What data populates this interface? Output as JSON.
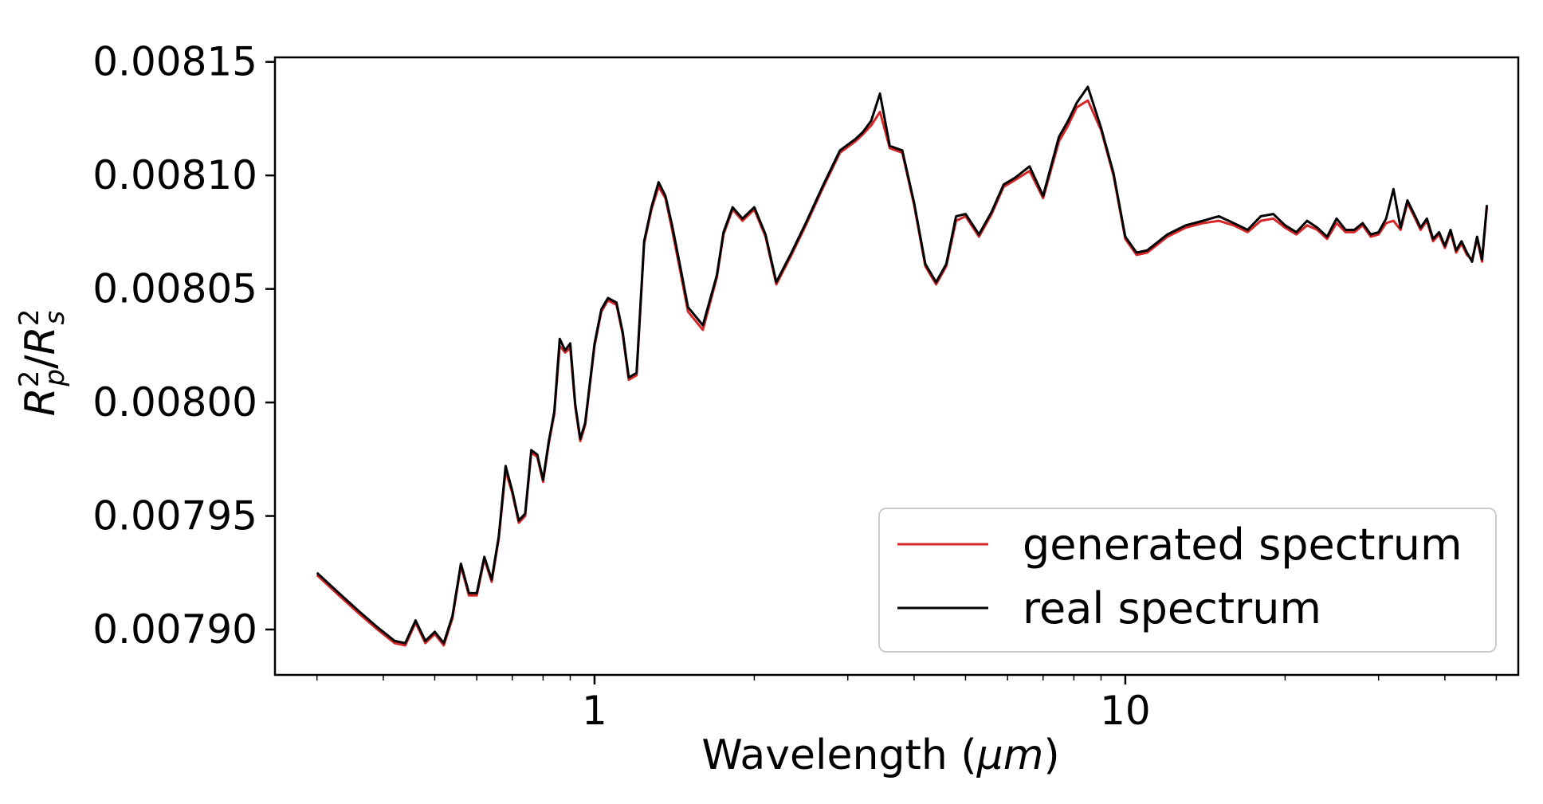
{
  "chart_data": {
    "type": "line",
    "title": "",
    "xlabel": "Wavelength (μm)",
    "xlabel_parts": {
      "prefix": "Wavelength (",
      "var": "μm",
      "suffix": ")"
    },
    "ylabel": "R_p^2/R_s^2",
    "ylabel_parts": {
      "r1": "R",
      "sup1": "2",
      "sub1": "p",
      "slash": "/",
      "r2": "R",
      "sup2": "2",
      "sub2": "s"
    },
    "xscale": "log",
    "xlim": [
      0.25,
      55
    ],
    "ylim": [
      0.00788,
      0.008152
    ],
    "xticks": [
      {
        "value": 1,
        "label": "1"
      },
      {
        "value": 10,
        "label": "10"
      }
    ],
    "yticks": [
      {
        "value": 0.0079,
        "label": "0.00790"
      },
      {
        "value": 0.00795,
        "label": "0.00795"
      },
      {
        "value": 0.008,
        "label": "0.00800"
      },
      {
        "value": 0.00805,
        "label": "0.00805"
      },
      {
        "value": 0.0081,
        "label": "0.00810"
      },
      {
        "value": 0.00815,
        "label": "0.00815"
      }
    ],
    "grid": false,
    "legend_position": "lower-right",
    "series": [
      {
        "name": "generated spectrum",
        "color": "#d62728",
        "x": [
          0.3,
          0.33,
          0.36,
          0.39,
          0.42,
          0.44,
          0.46,
          0.48,
          0.5,
          0.52,
          0.54,
          0.56,
          0.58,
          0.6,
          0.62,
          0.64,
          0.66,
          0.68,
          0.7,
          0.72,
          0.74,
          0.76,
          0.78,
          0.8,
          0.82,
          0.84,
          0.86,
          0.88,
          0.9,
          0.92,
          0.94,
          0.96,
          1.0,
          1.03,
          1.06,
          1.1,
          1.13,
          1.16,
          1.2,
          1.24,
          1.28,
          1.32,
          1.36,
          1.4,
          1.45,
          1.5,
          1.6,
          1.7,
          1.75,
          1.82,
          1.9,
          2.0,
          2.1,
          2.2,
          2.35,
          2.5,
          2.7,
          2.9,
          3.1,
          3.2,
          3.32,
          3.45,
          3.6,
          3.8,
          4.0,
          4.2,
          4.4,
          4.6,
          4.8,
          5.0,
          5.3,
          5.6,
          5.9,
          6.2,
          6.6,
          7.0,
          7.5,
          7.8,
          8.1,
          8.5,
          9.0,
          9.5,
          10.0,
          10.5,
          11.0,
          12.0,
          13.0,
          14.0,
          15.0,
          16.0,
          17.0,
          18.0,
          19.0,
          20.0,
          21.0,
          22.0,
          23.0,
          24.0,
          25.0,
          26.0,
          27.0,
          28.0,
          29.0,
          30.0,
          31.0,
          32.0,
          33.0,
          34.0,
          35.0,
          36.0,
          37.0,
          38.0,
          39.0,
          40.0,
          41.0,
          42.0,
          43.0,
          44.0,
          45.0,
          46.0,
          47.0,
          48.0
        ],
        "y": [
          0.007924,
          0.007915,
          0.007907,
          0.0079,
          0.007894,
          0.007893,
          0.007903,
          0.007894,
          0.007898,
          0.007893,
          0.007905,
          0.007928,
          0.007915,
          0.007915,
          0.007931,
          0.007921,
          0.00794,
          0.00797,
          0.00796,
          0.007947,
          0.00795,
          0.007978,
          0.007976,
          0.007965,
          0.007982,
          0.007995,
          0.008025,
          0.008022,
          0.008024,
          0.007998,
          0.007983,
          0.00799,
          0.008025,
          0.00804,
          0.008045,
          0.008043,
          0.00803,
          0.00801,
          0.008012,
          0.00807,
          0.008085,
          0.008095,
          0.00809,
          0.008076,
          0.008058,
          0.00804,
          0.008032,
          0.008055,
          0.008074,
          0.008085,
          0.00808,
          0.008085,
          0.008073,
          0.008052,
          0.008065,
          0.008078,
          0.008095,
          0.00811,
          0.008115,
          0.008118,
          0.008122,
          0.008128,
          0.008112,
          0.00811,
          0.008087,
          0.00806,
          0.008052,
          0.00806,
          0.00808,
          0.008082,
          0.008073,
          0.008083,
          0.008095,
          0.008098,
          0.008102,
          0.00809,
          0.008115,
          0.008122,
          0.00813,
          0.008133,
          0.00812,
          0.0081,
          0.008072,
          0.008065,
          0.008066,
          0.008073,
          0.008077,
          0.008079,
          0.00808,
          0.008078,
          0.008075,
          0.00808,
          0.008081,
          0.008077,
          0.008074,
          0.008078,
          0.008076,
          0.008072,
          0.008079,
          0.008075,
          0.008075,
          0.008078,
          0.008073,
          0.008074,
          0.008079,
          0.00808,
          0.008076,
          0.008088,
          0.008082,
          0.008076,
          0.00808,
          0.008071,
          0.008074,
          0.008068,
          0.008075,
          0.008066,
          0.00807,
          0.008065,
          0.008063,
          0.008072,
          0.008062,
          0.008086
        ]
      },
      {
        "name": "real spectrum",
        "color": "#000000",
        "x": [
          0.3,
          0.33,
          0.36,
          0.39,
          0.42,
          0.44,
          0.46,
          0.48,
          0.5,
          0.52,
          0.54,
          0.56,
          0.58,
          0.6,
          0.62,
          0.64,
          0.66,
          0.68,
          0.7,
          0.72,
          0.74,
          0.76,
          0.78,
          0.8,
          0.82,
          0.84,
          0.86,
          0.88,
          0.9,
          0.92,
          0.94,
          0.96,
          1.0,
          1.03,
          1.06,
          1.1,
          1.13,
          1.16,
          1.2,
          1.24,
          1.28,
          1.32,
          1.36,
          1.4,
          1.45,
          1.5,
          1.6,
          1.7,
          1.75,
          1.82,
          1.9,
          2.0,
          2.1,
          2.2,
          2.35,
          2.5,
          2.7,
          2.9,
          3.1,
          3.2,
          3.32,
          3.45,
          3.6,
          3.8,
          4.0,
          4.2,
          4.4,
          4.6,
          4.8,
          5.0,
          5.3,
          5.6,
          5.9,
          6.2,
          6.6,
          7.0,
          7.5,
          7.8,
          8.1,
          8.5,
          9.0,
          9.5,
          10.0,
          10.5,
          11.0,
          12.0,
          13.0,
          14.0,
          15.0,
          16.0,
          17.0,
          18.0,
          19.0,
          20.0,
          21.0,
          22.0,
          23.0,
          24.0,
          25.0,
          26.0,
          27.0,
          28.0,
          29.0,
          30.0,
          31.0,
          32.0,
          33.0,
          34.0,
          35.0,
          36.0,
          37.0,
          38.0,
          39.0,
          40.0,
          41.0,
          42.0,
          43.0,
          44.0,
          45.0,
          46.0,
          47.0,
          48.0
        ],
        "y": [
          0.007925,
          0.007916,
          0.007908,
          0.007901,
          0.007895,
          0.007894,
          0.007904,
          0.007895,
          0.007899,
          0.007894,
          0.007906,
          0.007929,
          0.007916,
          0.007916,
          0.007932,
          0.007922,
          0.007941,
          0.007972,
          0.007961,
          0.007948,
          0.007951,
          0.007979,
          0.007977,
          0.007966,
          0.007983,
          0.007996,
          0.008028,
          0.008023,
          0.008026,
          0.007999,
          0.007984,
          0.007991,
          0.008026,
          0.008041,
          0.008046,
          0.008044,
          0.008031,
          0.008011,
          0.008013,
          0.008071,
          0.008086,
          0.008097,
          0.008091,
          0.008078,
          0.00806,
          0.008042,
          0.008034,
          0.008056,
          0.008075,
          0.008086,
          0.008081,
          0.008086,
          0.008074,
          0.008053,
          0.008066,
          0.008079,
          0.008096,
          0.008111,
          0.008116,
          0.008119,
          0.008124,
          0.008136,
          0.008113,
          0.008111,
          0.008088,
          0.008061,
          0.008053,
          0.008061,
          0.008082,
          0.008083,
          0.008074,
          0.008084,
          0.008096,
          0.008099,
          0.008104,
          0.008091,
          0.008117,
          0.008124,
          0.008132,
          0.008139,
          0.008121,
          0.008101,
          0.008073,
          0.008066,
          0.008067,
          0.008074,
          0.008078,
          0.00808,
          0.008082,
          0.008079,
          0.008076,
          0.008082,
          0.008083,
          0.008078,
          0.008075,
          0.00808,
          0.008077,
          0.008073,
          0.008081,
          0.008076,
          0.008076,
          0.008079,
          0.008074,
          0.008075,
          0.008081,
          0.008094,
          0.008077,
          0.008089,
          0.008083,
          0.008077,
          0.008081,
          0.008072,
          0.008075,
          0.008069,
          0.008076,
          0.008067,
          0.008071,
          0.008066,
          0.008062,
          0.008073,
          0.008063,
          0.008087
        ]
      }
    ],
    "legend": [
      {
        "label": "generated spectrum",
        "color": "#d62728"
      },
      {
        "label": "real spectrum",
        "color": "#000000"
      }
    ]
  }
}
